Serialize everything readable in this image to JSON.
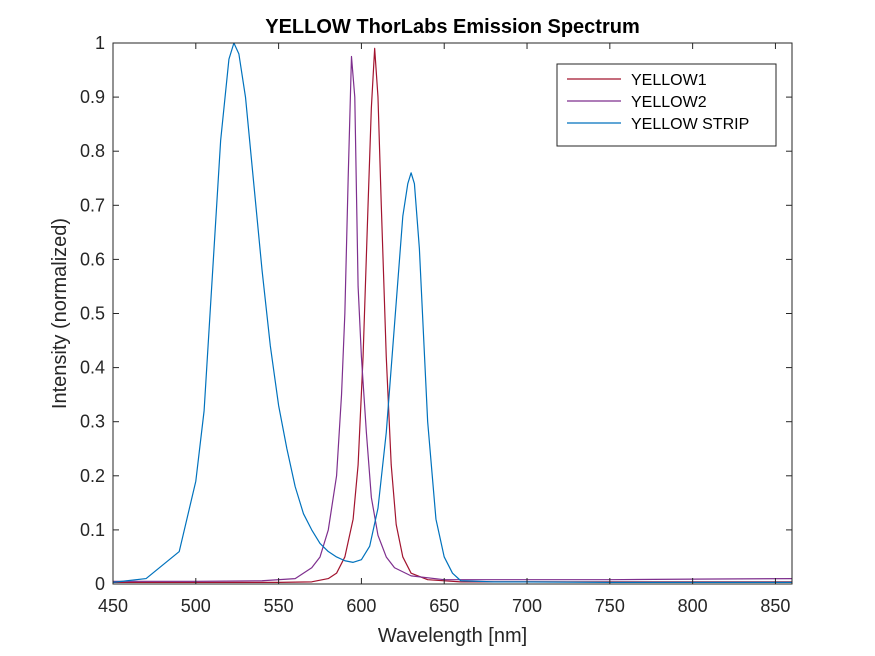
{
  "chart_data": {
    "type": "line",
    "title": "YELLOW ThorLabs Emission Spectrum",
    "xlabel": "Wavelength [nm]",
    "ylabel": "Intensity (normalized)",
    "xlim": [
      450,
      860
    ],
    "ylim": [
      0,
      1
    ],
    "xticks": [
      450,
      500,
      550,
      600,
      650,
      700,
      750,
      800,
      850
    ],
    "yticks": [
      0,
      0.1,
      0.2,
      0.3,
      0.4,
      0.5,
      0.6,
      0.7,
      0.8,
      0.9,
      1
    ],
    "ytick_labels": [
      "0",
      "0.1",
      "0.2",
      "0.3",
      "0.4",
      "0.5",
      "0.6",
      "0.7",
      "0.8",
      "0.9",
      "1"
    ],
    "grid": false,
    "legend_position": "top-right",
    "series": [
      {
        "name": "YELLOW1",
        "color": "#A2142F",
        "x": [
          450,
          500,
          550,
          570,
          580,
          585,
          590,
          595,
          598,
          601,
          604,
          606,
          608,
          610,
          612,
          615,
          618,
          621,
          625,
          630,
          640,
          660,
          700,
          750,
          800,
          860
        ],
        "y": [
          0.003,
          0.003,
          0.003,
          0.004,
          0.01,
          0.02,
          0.05,
          0.12,
          0.22,
          0.42,
          0.7,
          0.88,
          0.99,
          0.9,
          0.7,
          0.42,
          0.22,
          0.11,
          0.05,
          0.02,
          0.008,
          0.004,
          0.004,
          0.004,
          0.004,
          0.004
        ]
      },
      {
        "name": "YELLOW2",
        "color": "#7E2F8E",
        "x": [
          450,
          500,
          540,
          560,
          570,
          575,
          580,
          585,
          588,
          590,
          592,
          594,
          596,
          598,
          600,
          603,
          606,
          610,
          615,
          620,
          630,
          650,
          700,
          750,
          800,
          860
        ],
        "y": [
          0.005,
          0.005,
          0.006,
          0.01,
          0.03,
          0.05,
          0.1,
          0.2,
          0.35,
          0.5,
          0.75,
          0.975,
          0.9,
          0.55,
          0.42,
          0.28,
          0.16,
          0.09,
          0.05,
          0.03,
          0.015,
          0.008,
          0.008,
          0.008,
          0.009,
          0.01
        ]
      },
      {
        "name": "YELLOW STRIP",
        "color": "#0072BD",
        "x": [
          450,
          470,
          490,
          500,
          505,
          510,
          515,
          520,
          523,
          526,
          530,
          535,
          540,
          545,
          550,
          555,
          560,
          565,
          570,
          575,
          580,
          585,
          590,
          595,
          600,
          605,
          610,
          615,
          620,
          625,
          628,
          630,
          632,
          635,
          640,
          645,
          650,
          655,
          660,
          680,
          700,
          750,
          800,
          860
        ],
        "y": [
          0.003,
          0.01,
          0.06,
          0.19,
          0.32,
          0.57,
          0.82,
          0.97,
          1.0,
          0.98,
          0.9,
          0.74,
          0.58,
          0.44,
          0.33,
          0.25,
          0.18,
          0.13,
          0.1,
          0.075,
          0.06,
          0.05,
          0.043,
          0.04,
          0.045,
          0.07,
          0.14,
          0.28,
          0.48,
          0.68,
          0.74,
          0.76,
          0.74,
          0.62,
          0.3,
          0.12,
          0.05,
          0.02,
          0.006,
          0.004,
          0.004,
          0.003,
          0.003,
          0.003
        ]
      }
    ]
  }
}
